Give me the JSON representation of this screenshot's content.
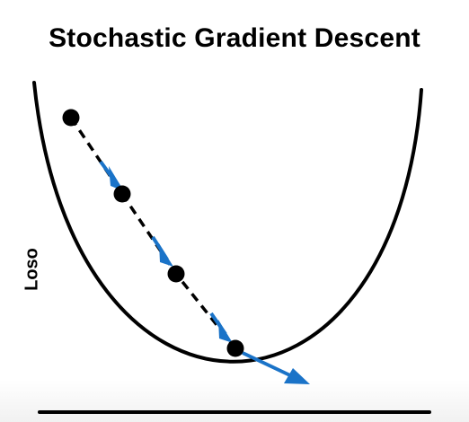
{
  "diagram": {
    "title": "Stochastic Gradient Descent",
    "y_axis_label": "Loso",
    "colors": {
      "curve": "#000000",
      "path": "#000000",
      "step_arrow": "#1a73c8",
      "point": "#000000"
    },
    "icons": [
      "loss-curve",
      "descent-path",
      "step-arrow",
      "parameter-point",
      "x-axis-line"
    ]
  }
}
